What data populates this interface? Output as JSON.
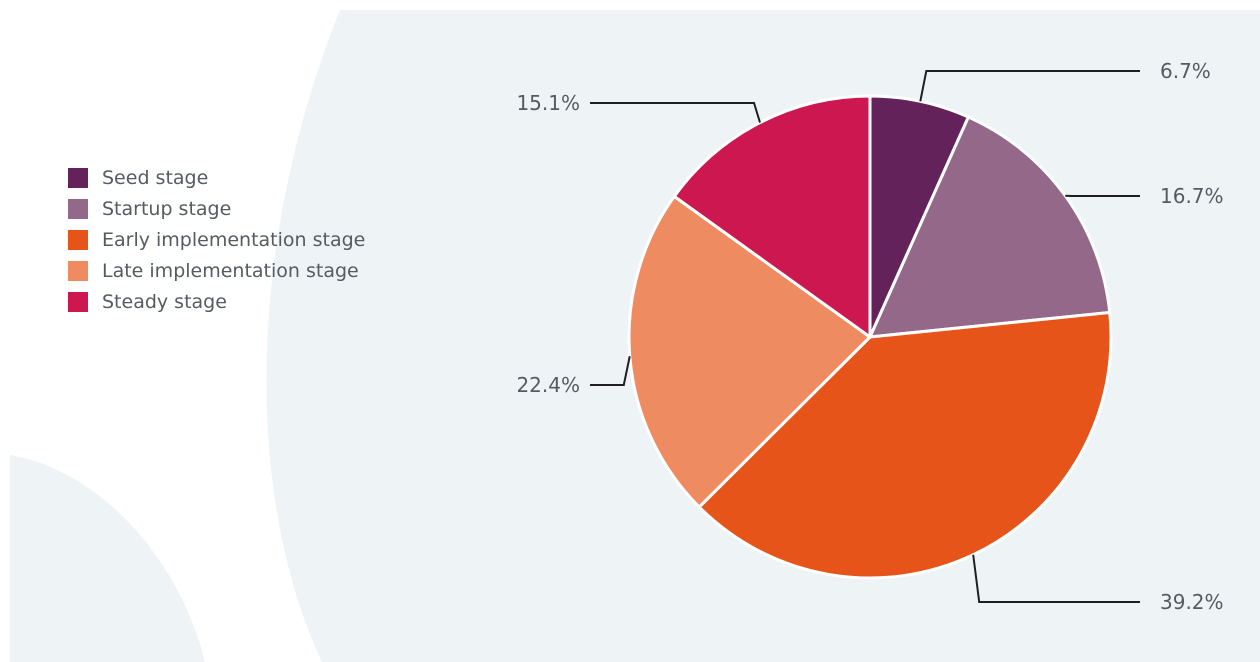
{
  "chart_data": {
    "type": "pie",
    "legend_position": "left",
    "slices": [
      {
        "label": "Seed stage",
        "value": 6.7,
        "value_label": "6.7%",
        "color": "#64225a"
      },
      {
        "label": "Startup stage",
        "value": 16.7,
        "value_label": "16.7%",
        "color": "#936889"
      },
      {
        "label": "Early implementation stage",
        "value": 39.2,
        "value_label": "39.2%",
        "color": "#e65419"
      },
      {
        "label": "Late implementation stage",
        "value": 22.4,
        "value_label": "22.4%",
        "color": "#ee8b61"
      },
      {
        "label": "Steady stage",
        "value": 15.1,
        "value_label": "15.1%",
        "color": "#cd1750"
      }
    ]
  },
  "colors": {
    "background_light": "#eef3f6",
    "leader_line": "#1f1f1f",
    "text": "#555b62"
  }
}
